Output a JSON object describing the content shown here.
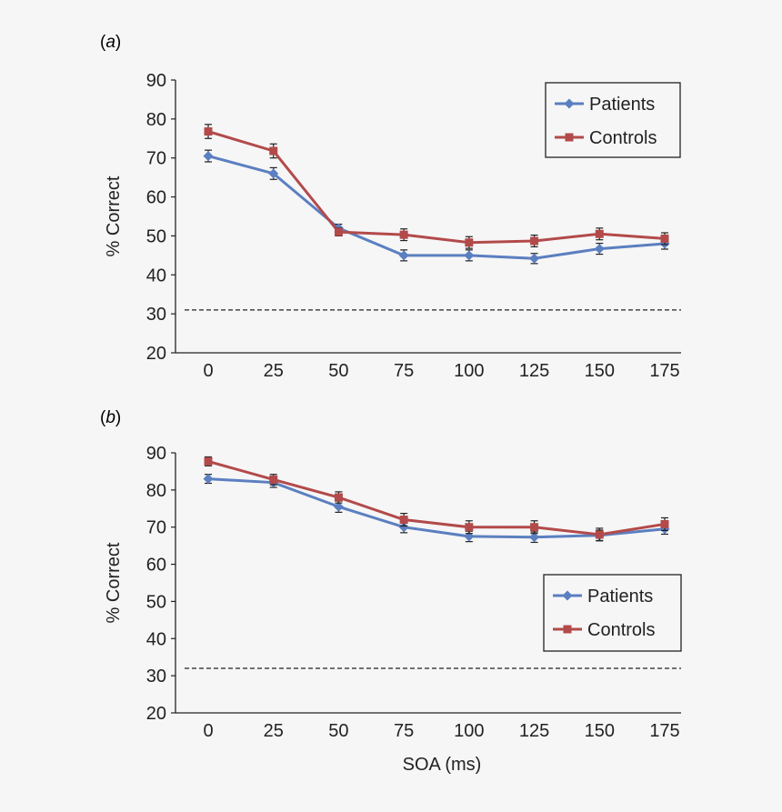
{
  "colors": {
    "background": "#f6f6f7",
    "axis": "#222222",
    "patients": "#5b7fc0",
    "controls": "#b34a4a",
    "chance_line": "#222222"
  },
  "chart_data": [
    {
      "type": "line",
      "panel_label": "(a)",
      "panel_letter": "a",
      "xlabel": "",
      "ylabel": "% Correct",
      "categories": [
        "0",
        "25",
        "50",
        "75",
        "100",
        "125",
        "150",
        "175"
      ],
      "yticks": [
        "20",
        "30",
        "40",
        "50",
        "60",
        "70",
        "80",
        "90"
      ],
      "ylim": [
        20,
        90
      ],
      "grid": false,
      "legend_position": "top-right",
      "chance_level": 31,
      "series": [
        {
          "name": "Patients",
          "marker": "diamond",
          "values": [
            70.5,
            66,
            52,
            45,
            45,
            44.2,
            46.7,
            48
          ],
          "errors": [
            1.5,
            1.5,
            1,
            1.4,
            1.4,
            1.3,
            1.4,
            1.4
          ]
        },
        {
          "name": "Controls",
          "marker": "square",
          "values": [
            76.8,
            71.8,
            51,
            50.3,
            48.3,
            48.7,
            50.5,
            49.3
          ],
          "errors": [
            1.8,
            1.8,
            1,
            1.5,
            1.5,
            1.5,
            1.5,
            1.5
          ]
        }
      ]
    },
    {
      "type": "line",
      "panel_label": "(b)",
      "panel_letter": "b",
      "xlabel": "SOA (ms)",
      "ylabel": "% Correct",
      "categories": [
        "0",
        "25",
        "50",
        "75",
        "100",
        "125",
        "150",
        "175"
      ],
      "yticks": [
        "20",
        "30",
        "40",
        "50",
        "60",
        "70",
        "80",
        "90"
      ],
      "ylim": [
        20,
        90
      ],
      "grid": false,
      "legend_position": "middle-right",
      "chance_level": 32,
      "series": [
        {
          "name": "Patients",
          "marker": "diamond",
          "values": [
            83,
            82,
            75.5,
            70,
            67.5,
            67.3,
            67.8,
            69.5
          ],
          "errors": [
            1.2,
            1.3,
            1.5,
            1.5,
            1.4,
            1.4,
            1.4,
            1.4
          ]
        },
        {
          "name": "Controls",
          "marker": "square",
          "values": [
            87.7,
            82.8,
            78,
            72,
            70,
            70,
            68,
            70.8
          ],
          "errors": [
            1.2,
            1.4,
            1.5,
            1.7,
            1.7,
            1.7,
            1.7,
            1.7
          ]
        }
      ]
    }
  ]
}
